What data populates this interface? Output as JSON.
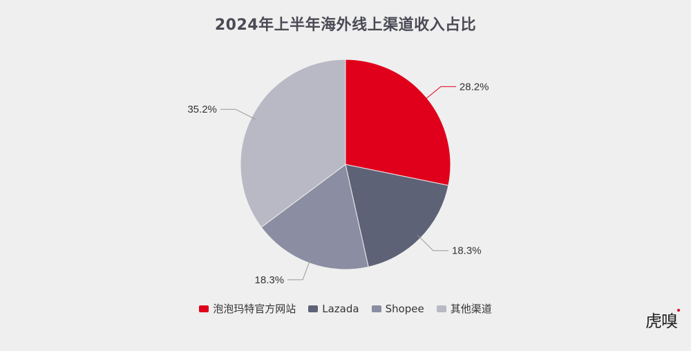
{
  "chart_data": {
    "type": "pie",
    "title": "2024年上半年海外线上渠道收入占比",
    "slices": [
      {
        "label": "泡泡玛特官方网站",
        "value": 28.2,
        "display": "28.2%",
        "color": "#e0001b"
      },
      {
        "label": "Lazada",
        "value": 18.3,
        "display": "18.3%",
        "color": "#5e6277"
      },
      {
        "label": "Shopee",
        "value": 18.3,
        "display": "18.3%",
        "color": "#8b8ea2"
      },
      {
        "label": "其他渠道",
        "value": 35.2,
        "display": "35.2%",
        "color": "#b8b9c4"
      }
    ],
    "start_angle_deg": 0,
    "direction": "clockwise",
    "legend_position": "bottom"
  },
  "colors": {
    "background": "#efefef",
    "title": "#4a4a55",
    "leader_line": "#999999",
    "accent": "#e0001b"
  },
  "watermark": {
    "text": "虎嗅"
  }
}
